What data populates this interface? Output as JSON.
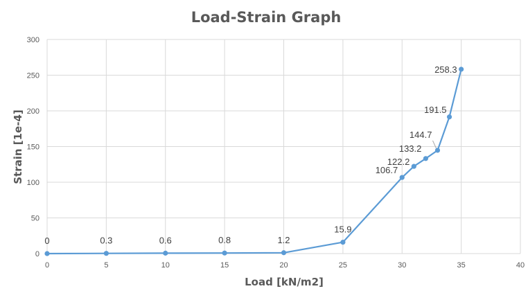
{
  "chart_data": {
    "type": "line",
    "title": "Load-Strain Graph",
    "xlabel": "Load [kN/m2]",
    "ylabel": "Strain [1e-4]",
    "xlim": [
      0,
      40
    ],
    "ylim": [
      0,
      300
    ],
    "xticks": [
      0,
      5,
      10,
      15,
      20,
      25,
      30,
      35,
      40
    ],
    "yticks": [
      0,
      50,
      100,
      150,
      200,
      250,
      300
    ],
    "grid": true,
    "legend": "none",
    "colors": {
      "series": "#5b9bd5",
      "grid": "#d9d9d9",
      "text": "#595959"
    },
    "series": [
      {
        "x": [
          0,
          5,
          10,
          15,
          20,
          25,
          30,
          31,
          32,
          33,
          34,
          35
        ],
        "y": [
          0,
          0.3,
          0.6,
          0.8,
          1.2,
          15.9,
          106.7,
          122.2,
          133.2,
          144.7,
          191.5,
          258.3
        ],
        "labels": [
          "0",
          "0.3",
          "0.6",
          "0.8",
          "1.2",
          "15.9",
          "106.7",
          "122.2",
          "133.2",
          "144.7",
          "191.5",
          "258.3"
        ]
      }
    ]
  }
}
